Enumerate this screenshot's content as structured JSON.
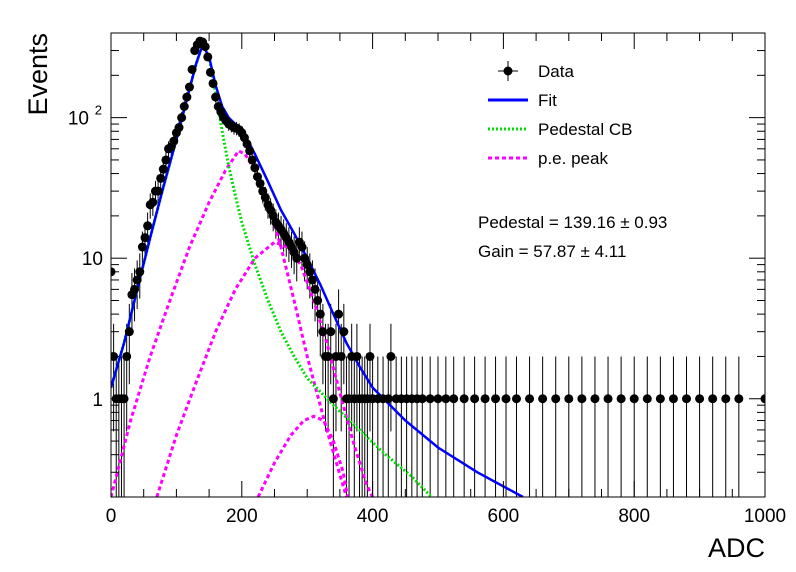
{
  "chart_data": {
    "type": "scatter",
    "xlabel": "ADC",
    "ylabel": "Events",
    "xlim": [
      0,
      1000
    ],
    "ylim": [
      0.2,
      400
    ],
    "ylog": true,
    "grid": false,
    "legend_position": "top-right",
    "x_ticks": [
      {
        "value": 0,
        "label": "0"
      },
      {
        "value": 200,
        "label": "200"
      },
      {
        "value": 400,
        "label": "400"
      },
      {
        "value": 600,
        "label": "600"
      },
      {
        "value": 800,
        "label": "800"
      },
      {
        "value": 1000,
        "label": "1000"
      }
    ],
    "y_ticks": [
      {
        "value": 1,
        "label": "1",
        "exp": ""
      },
      {
        "value": 10,
        "label": "10",
        "exp": ""
      },
      {
        "value": 100,
        "label": "10",
        "exp": "2"
      }
    ],
    "legend": [
      {
        "key": "data",
        "label": "Data",
        "color": "#000000",
        "style": "marker"
      },
      {
        "key": "fit",
        "label": "Fit",
        "color": "#0000ff",
        "style": "solid"
      },
      {
        "key": "ped",
        "label": "Pedestal CB",
        "color": "#00dd00",
        "style": "dotted"
      },
      {
        "key": "pe",
        "label": "p.e. peak",
        "color": "#ff00ff",
        "style": "dashed"
      }
    ],
    "annotations": [
      {
        "key": "pedestal",
        "text": "Pedestal = 139.16 ± 0.93"
      },
      {
        "key": "gain",
        "text": "Gain = 57.87 ± 4.11"
      }
    ],
    "data_points": [
      [
        0,
        8
      ],
      [
        4,
        2
      ],
      [
        8,
        1
      ],
      [
        12,
        1
      ],
      [
        16,
        1
      ],
      [
        20,
        1
      ],
      [
        24,
        2
      ],
      [
        28,
        3
      ],
      [
        32,
        5.5
      ],
      [
        36,
        6
      ],
      [
        40,
        7
      ],
      [
        44,
        8
      ],
      [
        48,
        12
      ],
      [
        52,
        14
      ],
      [
        56,
        17
      ],
      [
        60,
        24
      ],
      [
        64,
        25
      ],
      [
        68,
        30
      ],
      [
        72,
        30
      ],
      [
        76,
        37
      ],
      [
        80,
        43
      ],
      [
        84,
        50
      ],
      [
        88,
        60
      ],
      [
        92,
        62
      ],
      [
        96,
        68
      ],
      [
        100,
        78
      ],
      [
        104,
        85
      ],
      [
        108,
        100
      ],
      [
        112,
        120
      ],
      [
        116,
        140
      ],
      [
        120,
        165
      ],
      [
        124,
        220
      ],
      [
        128,
        300
      ],
      [
        132,
        330
      ],
      [
        136,
        350
      ],
      [
        140,
        345
      ],
      [
        144,
        320
      ],
      [
        148,
        270
      ],
      [
        152,
        210
      ],
      [
        156,
        175
      ],
      [
        160,
        140
      ],
      [
        164,
        120
      ],
      [
        168,
        110
      ],
      [
        172,
        100
      ],
      [
        176,
        95
      ],
      [
        180,
        90
      ],
      [
        184,
        88
      ],
      [
        188,
        85
      ],
      [
        192,
        84
      ],
      [
        196,
        82
      ],
      [
        200,
        78
      ],
      [
        204,
        72
      ],
      [
        208,
        65
      ],
      [
        212,
        58
      ],
      [
        216,
        50
      ],
      [
        220,
        44
      ],
      [
        224,
        38
      ],
      [
        228,
        34
      ],
      [
        232,
        30
      ],
      [
        236,
        27
      ],
      [
        240,
        24
      ],
      [
        244,
        22
      ],
      [
        248,
        20
      ],
      [
        252,
        18
      ],
      [
        256,
        17
      ],
      [
        260,
        16
      ],
      [
        264,
        15
      ],
      [
        268,
        14
      ],
      [
        272,
        13
      ],
      [
        276,
        12
      ],
      [
        280,
        11
      ],
      [
        284,
        10
      ],
      [
        288,
        13
      ],
      [
        292,
        12
      ],
      [
        296,
        10
      ],
      [
        300,
        9
      ],
      [
        304,
        8
      ],
      [
        308,
        7
      ],
      [
        312,
        6
      ],
      [
        316,
        5
      ],
      [
        320,
        4
      ],
      [
        324,
        3
      ],
      [
        328,
        2
      ],
      [
        332,
        2
      ],
      [
        336,
        3
      ],
      [
        340,
        1
      ],
      [
        344,
        2
      ],
      [
        348,
        4
      ],
      [
        352,
        2
      ],
      [
        356,
        3
      ],
      [
        360,
        1
      ],
      [
        364,
        1
      ],
      [
        368,
        2
      ],
      [
        372,
        1
      ],
      [
        376,
        2
      ],
      [
        380,
        1
      ],
      [
        384,
        1
      ],
      [
        388,
        1
      ],
      [
        392,
        1
      ],
      [
        396,
        2
      ],
      [
        400,
        1
      ],
      [
        408,
        1
      ],
      [
        416,
        1
      ],
      [
        424,
        1
      ],
      [
        428,
        2
      ],
      [
        436,
        1
      ],
      [
        444,
        1
      ],
      [
        452,
        1
      ],
      [
        460,
        1
      ],
      [
        468,
        1
      ],
      [
        476,
        1
      ],
      [
        488,
        1
      ],
      [
        500,
        1
      ],
      [
        512,
        1
      ],
      [
        524,
        1
      ],
      [
        540,
        1
      ],
      [
        556,
        1
      ],
      [
        572,
        1
      ],
      [
        588,
        1
      ],
      [
        604,
        1
      ],
      [
        620,
        1
      ],
      [
        640,
        1
      ],
      [
        660,
        1
      ],
      [
        680,
        1
      ],
      [
        700,
        1
      ],
      [
        720,
        1
      ],
      [
        740,
        1
      ],
      [
        760,
        1
      ],
      [
        780,
        1
      ],
      [
        800,
        1
      ],
      [
        820,
        1
      ],
      [
        840,
        1
      ],
      [
        860,
        1
      ],
      [
        880,
        1
      ],
      [
        900,
        1
      ],
      [
        920,
        1
      ],
      [
        940,
        1
      ],
      [
        960,
        1
      ],
      [
        1000,
        1
      ]
    ],
    "curves": {
      "fit": [
        [
          0,
          1.2
        ],
        [
          20,
          2.5
        ],
        [
          40,
          6
        ],
        [
          60,
          14
        ],
        [
          80,
          32
        ],
        [
          100,
          70
        ],
        [
          120,
          160
        ],
        [
          130,
          240
        ],
        [
          140,
          330
        ],
        [
          150,
          270
        ],
        [
          160,
          170
        ],
        [
          170,
          120
        ],
        [
          180,
          100
        ],
        [
          190,
          90
        ],
        [
          200,
          80
        ],
        [
          210,
          68
        ],
        [
          220,
          55
        ],
        [
          240,
          35
        ],
        [
          260,
          22
        ],
        [
          280,
          15
        ],
        [
          300,
          10
        ],
        [
          320,
          6.5
        ],
        [
          340,
          4
        ],
        [
          360,
          2.5
        ],
        [
          380,
          1.7
        ],
        [
          400,
          1.2
        ],
        [
          450,
          0.7
        ],
        [
          500,
          0.45
        ],
        [
          560,
          0.3
        ],
        [
          630,
          0.2
        ]
      ],
      "ped": [
        [
          0,
          1.2
        ],
        [
          20,
          2.5
        ],
        [
          40,
          6
        ],
        [
          60,
          14
        ],
        [
          80,
          32
        ],
        [
          100,
          70
        ],
        [
          120,
          160
        ],
        [
          130,
          240
        ],
        [
          140,
          330
        ],
        [
          150,
          270
        ],
        [
          160,
          150
        ],
        [
          170,
          80
        ],
        [
          180,
          45
        ],
        [
          190,
          28
        ],
        [
          200,
          18
        ],
        [
          220,
          9
        ],
        [
          240,
          5
        ],
        [
          260,
          3
        ],
        [
          280,
          2
        ],
        [
          300,
          1.4
        ],
        [
          340,
          0.9
        ],
        [
          380,
          0.6
        ],
        [
          420,
          0.4
        ],
        [
          460,
          0.28
        ],
        [
          490,
          0.2
        ]
      ],
      "pe": [
        [
          [
            0,
            0.2
          ],
          [
            30,
            0.7
          ],
          [
            60,
            2
          ],
          [
            90,
            5
          ],
          [
            120,
            12
          ],
          [
            150,
            25
          ],
          [
            175,
            42
          ],
          [
            195,
            58
          ],
          [
            205,
            55
          ],
          [
            220,
            42
          ],
          [
            240,
            25
          ],
          [
            260,
            12
          ],
          [
            280,
            5
          ],
          [
            300,
            2
          ],
          [
            330,
            0.6
          ],
          [
            360,
            0.2
          ]
        ],
        [
          [
            70,
            0.2
          ],
          [
            100,
            0.55
          ],
          [
            130,
            1.3
          ],
          [
            160,
            3
          ],
          [
            190,
            6
          ],
          [
            220,
            10
          ],
          [
            250,
            13
          ],
          [
            270,
            12
          ],
          [
            290,
            9
          ],
          [
            310,
            5
          ],
          [
            330,
            2.5
          ],
          [
            350,
            1.1
          ],
          [
            370,
            0.5
          ],
          [
            390,
            0.25
          ],
          [
            400,
            0.2
          ]
        ],
        [
          [
            225,
            0.2
          ],
          [
            250,
            0.35
          ],
          [
            275,
            0.55
          ],
          [
            295,
            0.7
          ],
          [
            310,
            0.75
          ],
          [
            325,
            0.7
          ],
          [
            340,
            0.5
          ],
          [
            355,
            0.3
          ],
          [
            362,
            0.2
          ]
        ]
      ]
    }
  }
}
